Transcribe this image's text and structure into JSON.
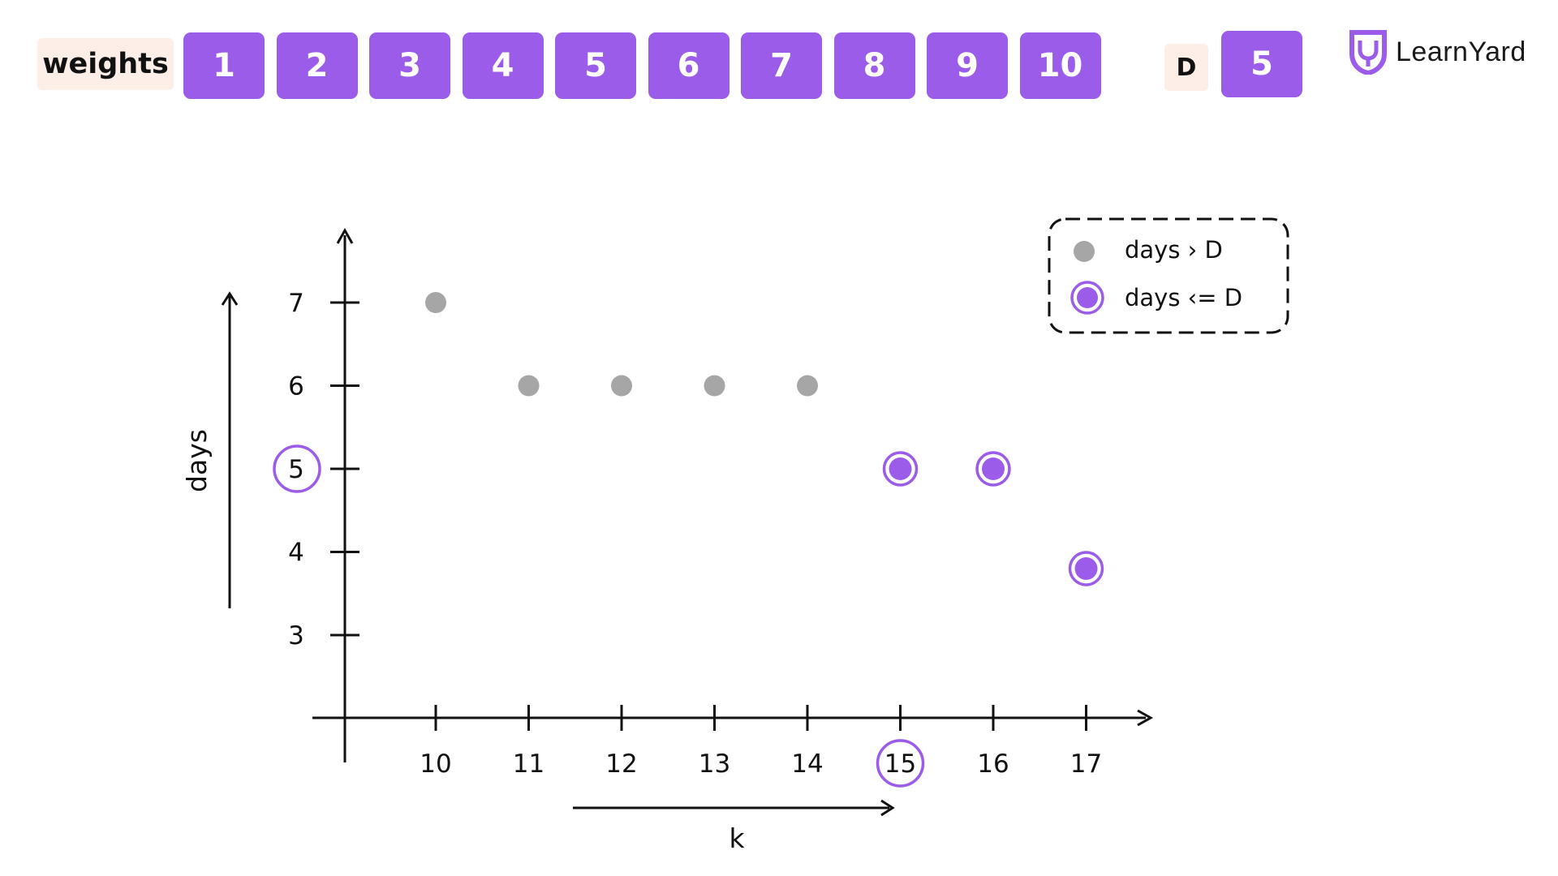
{
  "header": {
    "weights_label": "weights",
    "weights": [
      "1",
      "2",
      "3",
      "4",
      "5",
      "6",
      "7",
      "8",
      "9",
      "10"
    ],
    "d_label": "D",
    "d_value": "5",
    "brand": "LearnYard"
  },
  "colors": {
    "accent": "#9b5ce9",
    "tag_bg": "#fdeee8",
    "above_point": "#a6a6a6",
    "highlight_ring": "#9b5ce9"
  },
  "chart_data": {
    "type": "scatter",
    "xlabel": "k",
    "ylabel": "days",
    "x_ticks": [
      10,
      11,
      12,
      13,
      14,
      15,
      16,
      17
    ],
    "y_ticks": [
      3,
      4,
      5,
      6,
      7
    ],
    "xlim": [
      9,
      17.8
    ],
    "ylim": [
      2,
      7.8
    ],
    "series": [
      {
        "name": "days > D",
        "style": "filled-gray",
        "x": [
          10,
          11,
          12,
          13,
          14
        ],
        "y": [
          7,
          6,
          6,
          6,
          6
        ]
      },
      {
        "name": "days <= D",
        "style": "ringed-purple",
        "x": [
          15,
          16,
          17
        ],
        "y": [
          5,
          5,
          3.8
        ]
      }
    ],
    "highlight": {
      "x_tick": 15,
      "y_tick": 5
    },
    "legend_position": "top-right",
    "grid": false
  }
}
